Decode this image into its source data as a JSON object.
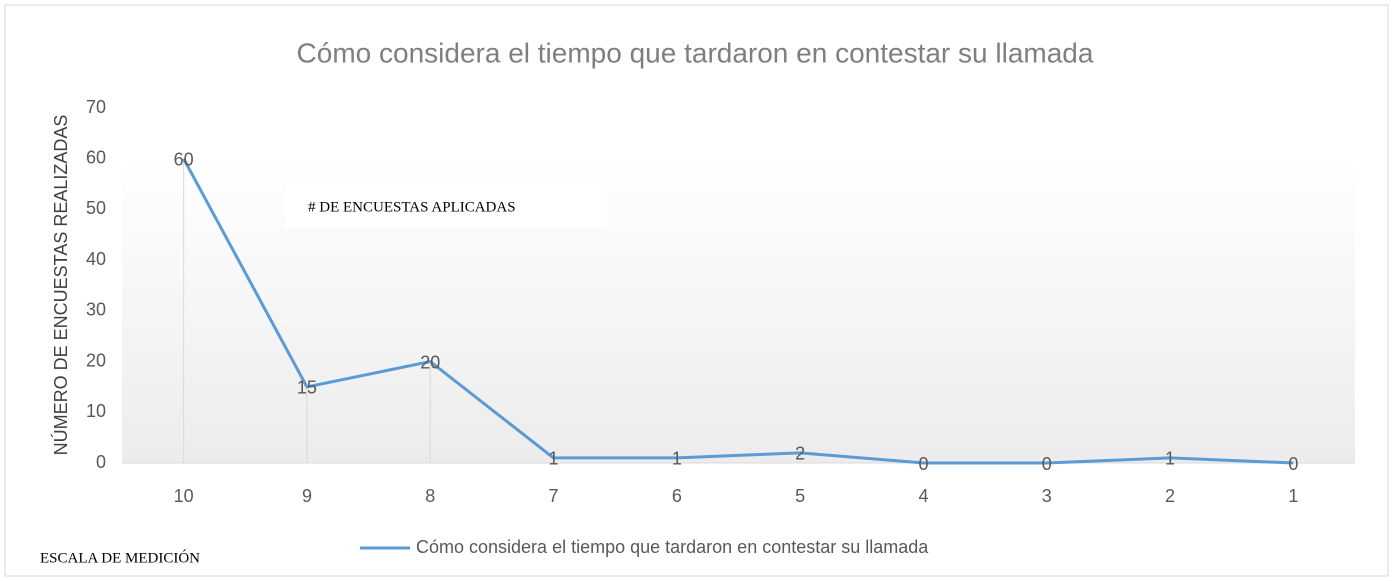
{
  "chart_data": {
    "type": "line",
    "title": "Cómo considera el tiempo que tardaron en contestar su llamada",
    "ylabel": "NÚMERO DE ENCUESTAS REALIZADAS",
    "xlabel": "ESCALA DE MEDICIÓN",
    "annotations": [
      "# DE ENCUESTAS APLICADAS"
    ],
    "categories": [
      "10",
      "9",
      "8",
      "7",
      "6",
      "5",
      "4",
      "3",
      "2",
      "1"
    ],
    "series": [
      {
        "name": "Cómo considera el tiempo que tardaron en contestar su llamada",
        "color": "#5b9bd5",
        "values": [
          60,
          15,
          20,
          1,
          1,
          2,
          0,
          0,
          1,
          0
        ]
      }
    ],
    "ylim": [
      0,
      70
    ],
    "yticks": [
      0,
      10,
      20,
      30,
      40,
      50,
      60,
      70
    ],
    "grid": false,
    "legend": "bottom"
  }
}
